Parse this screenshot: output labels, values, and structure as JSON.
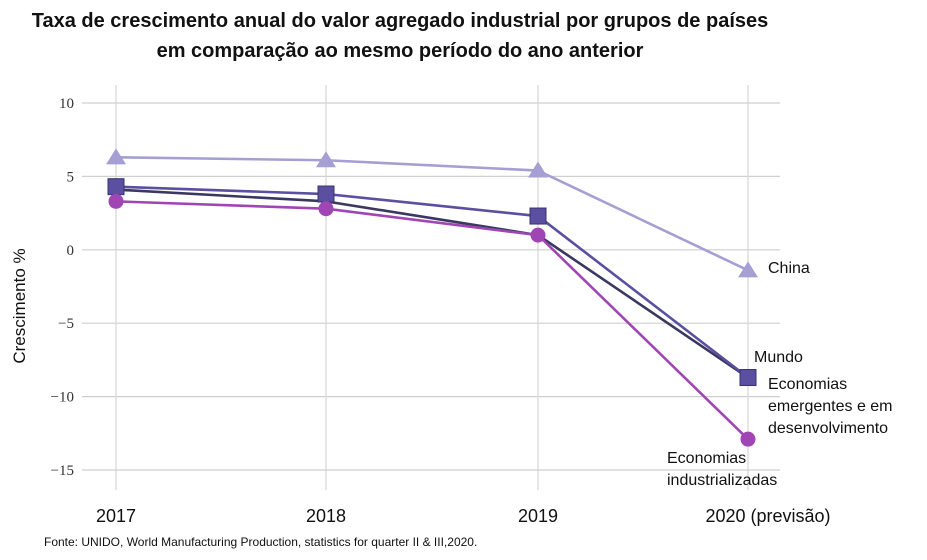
{
  "chart_data": {
    "type": "line",
    "title": "Taxa de crescimento anual do valor agregado industrial por grupos de países",
    "subtitle": "em comparação ao mesmo período do ano anterior",
    "ylabel": "Crescimento %",
    "xlabel": "",
    "categories": [
      "2017",
      "2018",
      "2019",
      "2020 (previsão)"
    ],
    "ylim": [
      -15,
      10
    ],
    "yticks": [
      10,
      5,
      0,
      -5,
      -10,
      -15
    ],
    "ytick_labels": [
      "10",
      "5",
      "0",
      "−5",
      "−10",
      "−15"
    ],
    "grid": true,
    "series": [
      {
        "name": "China",
        "values": [
          6.3,
          6.1,
          5.4,
          -1.4
        ],
        "color": "#a59fd4",
        "marker": "triangle"
      },
      {
        "name": "Mundo",
        "values": [
          4.1,
          3.3,
          1.0,
          -8.7
        ],
        "color": "#3b3860",
        "marker": "none"
      },
      {
        "name": "Economias emergentes e em desenvolvimento",
        "values": [
          4.3,
          3.8,
          2.3,
          -8.7
        ],
        "color": "#5a4fa0",
        "marker": "square"
      },
      {
        "name": "Economias industrializadas",
        "values": [
          3.3,
          2.8,
          1.0,
          -12.9
        ],
        "color": "#a046b4",
        "marker": "circle"
      }
    ],
    "labels": {
      "china": "China",
      "mundo": "Mundo",
      "emergentes": [
        "Economias",
        "emergentes e em",
        "desenvolvimento"
      ],
      "industrializadas": [
        "Economias",
        "industrializadas"
      ]
    },
    "source": "Fonte: UNIDO, World Manufacturing Production, statistics for quarter II & III,2020."
  }
}
